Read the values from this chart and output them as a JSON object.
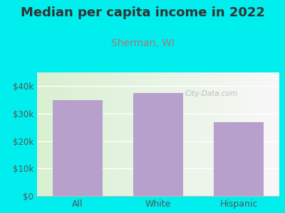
{
  "title": "Median per capita income in 2022",
  "subtitle": "Sherman, WI",
  "categories": [
    "All",
    "White",
    "Hispanic"
  ],
  "values": [
    35000,
    37500,
    27000
  ],
  "bar_color": "#b8a0cc",
  "background_color": "#00eeee",
  "plot_bg_left": "#d8f0d0",
  "plot_bg_right": "#f8f8f8",
  "title_fontsize": 13,
  "title_color": "#333333",
  "subtitle_fontsize": 10,
  "subtitle_color": "#aa7777",
  "tick_label_color": "#555555",
  "ylim": [
    0,
    45000
  ],
  "yticks": [
    0,
    10000,
    20000,
    30000,
    40000
  ],
  "ytick_labels": [
    "$0",
    "$10k",
    "$20k",
    "$30k",
    "$40k"
  ],
  "watermark": "City-Data.com"
}
